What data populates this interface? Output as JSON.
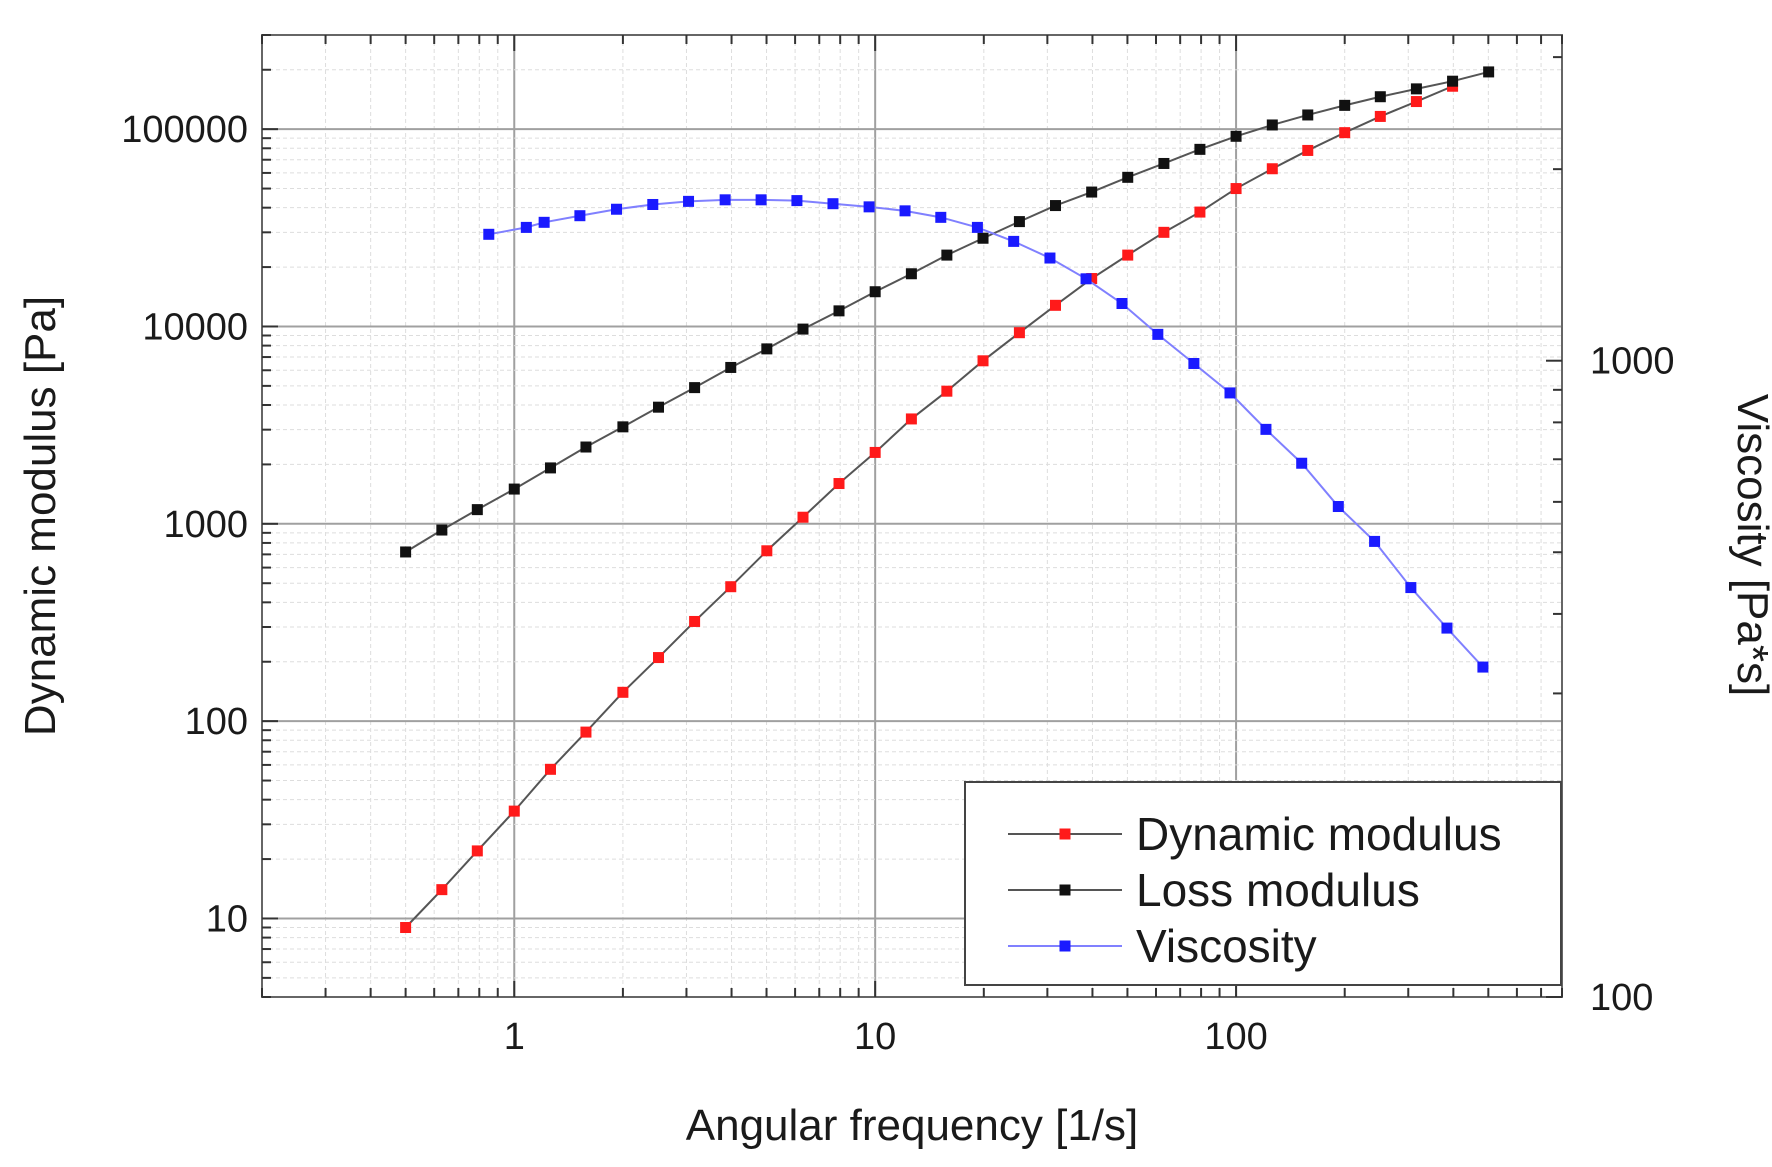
{
  "chart_data": {
    "type": "line",
    "x_scale": "log",
    "y_scale": "log",
    "y2_scale": "log",
    "xlabel": "Angular frequency [1/s]",
    "ylabel": "Dynamic modulus [Pa]",
    "y2label": "Viscosity [Pa*s]",
    "xlim": [
      0.2,
      800
    ],
    "ylim": [
      4,
      300000
    ],
    "y2lim": [
      100,
      3250
    ],
    "x_ticks": [
      1,
      10,
      100
    ],
    "x_tick_labels": [
      "1",
      "10",
      "100"
    ],
    "y_ticks": [
      10,
      100,
      1000,
      10000,
      100000
    ],
    "y_tick_labels": [
      "10",
      "100",
      "1000",
      "10000",
      "100000"
    ],
    "y2_ticks": [
      100,
      1000
    ],
    "y2_tick_labels": [
      "100",
      "1000"
    ],
    "grid": true,
    "legend_position": "bottom-right",
    "series": [
      {
        "name": "Dynamic modulus",
        "axis": "left",
        "color": "#ff1a1a",
        "line_color": "#555555",
        "x": [
          0.5,
          0.63,
          0.79,
          1.0,
          1.26,
          1.58,
          2.0,
          2.51,
          3.16,
          3.98,
          5.01,
          6.31,
          7.94,
          10.0,
          12.6,
          15.8,
          19.9,
          25.1,
          31.6,
          39.8,
          50.1,
          63.1,
          79.4,
          100,
          126,
          158,
          200,
          251,
          316,
          398
        ],
        "y": [
          9,
          14,
          22,
          35,
          57,
          88,
          140,
          210,
          320,
          480,
          730,
          1080,
          1600,
          2300,
          3400,
          4700,
          6700,
          9300,
          12800,
          17500,
          23000,
          30000,
          38000,
          50000,
          63000,
          78000,
          96000,
          116000,
          138000,
          165000
        ]
      },
      {
        "name": "Loss modulus",
        "axis": "left",
        "color": "#111111",
        "line_color": "#555555",
        "x": [
          0.5,
          0.63,
          0.79,
          1.0,
          1.26,
          1.58,
          2.0,
          2.51,
          3.16,
          3.98,
          5.01,
          6.31,
          7.94,
          10.0,
          12.6,
          15.8,
          19.9,
          25.1,
          31.6,
          39.8,
          50.1,
          63.1,
          79.4,
          100,
          126,
          158,
          200,
          251,
          316,
          398,
          501
        ],
        "y": [
          720,
          930,
          1180,
          1500,
          1920,
          2450,
          3100,
          3900,
          4900,
          6200,
          7700,
          9700,
          12000,
          15000,
          18500,
          23000,
          28000,
          34000,
          41000,
          48000,
          57000,
          67000,
          79000,
          92000,
          105000,
          118000,
          132000,
          146000,
          160000,
          175000,
          195000
        ]
      },
      {
        "name": "Viscosity",
        "axis": "right",
        "color": "#1a1aff",
        "line_color": "#8080ff",
        "x": [
          0.85,
          1.08,
          1.21,
          1.52,
          1.92,
          2.42,
          3.04,
          3.84,
          4.83,
          6.07,
          7.64,
          9.62,
          12.1,
          15.2,
          19.2,
          24.2,
          30.5,
          38.4,
          48.3,
          60.7,
          76.4,
          96.2,
          121,
          152,
          192,
          242,
          305,
          384,
          483
        ],
        "y": [
          1580,
          1620,
          1650,
          1690,
          1730,
          1760,
          1780,
          1790,
          1790,
          1785,
          1765,
          1745,
          1720,
          1680,
          1620,
          1540,
          1450,
          1345,
          1230,
          1100,
          990,
          890,
          780,
          690,
          590,
          520,
          440,
          380,
          330
        ]
      }
    ],
    "legend": [
      {
        "label": "Dynamic modulus"
      },
      {
        "label": "Loss modulus"
      },
      {
        "label": "Viscosity"
      }
    ]
  }
}
